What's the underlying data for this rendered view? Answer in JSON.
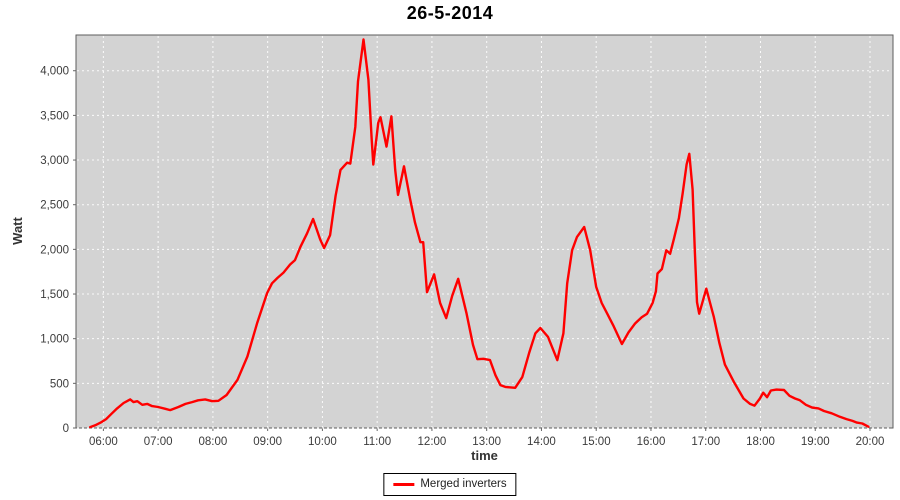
{
  "title": "26-5-2014",
  "axes": {
    "x_label": "time",
    "y_label": "Watt"
  },
  "legend": {
    "position": "bottom-center",
    "items": [
      {
        "label": "Merged inverters",
        "color": "#ff0000"
      }
    ]
  },
  "colors": {
    "series_red": "#ff0000",
    "plot_background": "#d3d3d3",
    "gridline": "#ffffff",
    "plot_border": "#5e5e5e",
    "tick_text": "#3b3b3b"
  },
  "chart_data": {
    "type": "line",
    "title": "26-5-2014",
    "xlabel": "time",
    "ylabel": "Watt",
    "legend_position": "bottom",
    "grid": {
      "color": "#ffffff",
      "style": "dashed"
    },
    "plot_background": "#d3d3d3",
    "xlim": [
      5.5,
      20.42
    ],
    "ylim": [
      0,
      4400
    ],
    "x_ticks": {
      "values": [
        6,
        7,
        8,
        9,
        10,
        11,
        12,
        13,
        14,
        15,
        16,
        17,
        18,
        19,
        20
      ],
      "labels": [
        "06:00",
        "07:00",
        "08:00",
        "09:00",
        "10:00",
        "11:00",
        "12:00",
        "13:00",
        "14:00",
        "15:00",
        "16:00",
        "17:00",
        "18:00",
        "19:00",
        "20:00"
      ]
    },
    "y_ticks": {
      "values": [
        0,
        500,
        1000,
        1500,
        2000,
        2500,
        3000,
        3500,
        4000
      ],
      "labels": [
        "0",
        "500",
        "1,000",
        "1,500",
        "2,000",
        "2,500",
        "3,000",
        "3,500",
        "4,000"
      ]
    },
    "series": [
      {
        "name": "Merged inverters",
        "color": "#ff0000",
        "x_unit": "hour_of_day_decimal",
        "y_unit": "watt",
        "points": [
          [
            5.76,
            10
          ],
          [
            5.85,
            30
          ],
          [
            5.95,
            60
          ],
          [
            6.05,
            100
          ],
          [
            6.15,
            160
          ],
          [
            6.25,
            220
          ],
          [
            6.37,
            280
          ],
          [
            6.49,
            320
          ],
          [
            6.55,
            290
          ],
          [
            6.62,
            300
          ],
          [
            6.71,
            260
          ],
          [
            6.8,
            270
          ],
          [
            6.89,
            245
          ],
          [
            7.0,
            235
          ],
          [
            7.13,
            215
          ],
          [
            7.22,
            200
          ],
          [
            7.37,
            235
          ],
          [
            7.5,
            270
          ],
          [
            7.62,
            290
          ],
          [
            7.73,
            310
          ],
          [
            7.86,
            320
          ],
          [
            7.99,
            300
          ],
          [
            8.1,
            305
          ],
          [
            8.25,
            370
          ],
          [
            8.45,
            540
          ],
          [
            8.63,
            800
          ],
          [
            8.81,
            1180
          ],
          [
            8.99,
            1510
          ],
          [
            9.08,
            1620
          ],
          [
            9.18,
            1680
          ],
          [
            9.29,
            1740
          ],
          [
            9.41,
            1830
          ],
          [
            9.5,
            1880
          ],
          [
            9.6,
            2030
          ],
          [
            9.72,
            2180
          ],
          [
            9.83,
            2340
          ],
          [
            9.96,
            2110
          ],
          [
            10.03,
            2015
          ],
          [
            10.14,
            2160
          ],
          [
            10.24,
            2600
          ],
          [
            10.33,
            2890
          ],
          [
            10.45,
            2970
          ],
          [
            10.51,
            2960
          ],
          [
            10.6,
            3370
          ],
          [
            10.65,
            3880
          ],
          [
            10.75,
            4350
          ],
          [
            10.84,
            3900
          ],
          [
            10.9,
            3230
          ],
          [
            10.93,
            2950
          ],
          [
            11.02,
            3420
          ],
          [
            11.06,
            3480
          ],
          [
            11.17,
            3150
          ],
          [
            11.26,
            3490
          ],
          [
            11.33,
            2890
          ],
          [
            11.38,
            2610
          ],
          [
            11.49,
            2930
          ],
          [
            11.6,
            2570
          ],
          [
            11.69,
            2300
          ],
          [
            11.79,
            2080
          ],
          [
            11.84,
            2080
          ],
          [
            11.91,
            1520
          ],
          [
            12.04,
            1720
          ],
          [
            12.15,
            1400
          ],
          [
            12.26,
            1230
          ],
          [
            12.37,
            1480
          ],
          [
            12.48,
            1670
          ],
          [
            12.63,
            1290
          ],
          [
            12.75,
            930
          ],
          [
            12.83,
            770
          ],
          [
            12.94,
            775
          ],
          [
            13.06,
            760
          ],
          [
            13.16,
            590
          ],
          [
            13.25,
            480
          ],
          [
            13.34,
            460
          ],
          [
            13.52,
            450
          ],
          [
            13.65,
            570
          ],
          [
            13.78,
            850
          ],
          [
            13.89,
            1060
          ],
          [
            13.98,
            1120
          ],
          [
            14.12,
            1020
          ],
          [
            14.29,
            760
          ],
          [
            14.4,
            1060
          ],
          [
            14.47,
            1620
          ],
          [
            14.56,
            1990
          ],
          [
            14.65,
            2140
          ],
          [
            14.78,
            2250
          ],
          [
            14.89,
            1990
          ],
          [
            15.0,
            1580
          ],
          [
            15.1,
            1400
          ],
          [
            15.21,
            1270
          ],
          [
            15.31,
            1150
          ],
          [
            15.47,
            940
          ],
          [
            15.59,
            1070
          ],
          [
            15.71,
            1170
          ],
          [
            15.83,
            1240
          ],
          [
            15.93,
            1280
          ],
          [
            16.03,
            1400
          ],
          [
            16.09,
            1530
          ],
          [
            16.12,
            1730
          ],
          [
            16.2,
            1780
          ],
          [
            16.28,
            1990
          ],
          [
            16.35,
            1950
          ],
          [
            16.42,
            2120
          ],
          [
            16.51,
            2350
          ],
          [
            16.58,
            2630
          ],
          [
            16.65,
            2950
          ],
          [
            16.7,
            3070
          ],
          [
            16.76,
            2670
          ],
          [
            16.8,
            1990
          ],
          [
            16.84,
            1410
          ],
          [
            16.88,
            1280
          ],
          [
            16.95,
            1430
          ],
          [
            17.01,
            1560
          ],
          [
            17.08,
            1400
          ],
          [
            17.15,
            1240
          ],
          [
            17.25,
            950
          ],
          [
            17.35,
            710
          ],
          [
            17.51,
            520
          ],
          [
            17.69,
            330
          ],
          [
            17.81,
            270
          ],
          [
            17.89,
            250
          ],
          [
            17.99,
            330
          ],
          [
            18.05,
            395
          ],
          [
            18.12,
            345
          ],
          [
            18.19,
            420
          ],
          [
            18.29,
            430
          ],
          [
            18.43,
            425
          ],
          [
            18.53,
            360
          ],
          [
            18.63,
            330
          ],
          [
            18.72,
            310
          ],
          [
            18.83,
            260
          ],
          [
            18.94,
            230
          ],
          [
            19.06,
            220
          ],
          [
            19.16,
            190
          ],
          [
            19.3,
            165
          ],
          [
            19.45,
            125
          ],
          [
            19.57,
            100
          ],
          [
            19.68,
            80
          ],
          [
            19.76,
            60
          ],
          [
            19.86,
            50
          ],
          [
            19.97,
            15
          ]
        ]
      }
    ]
  }
}
